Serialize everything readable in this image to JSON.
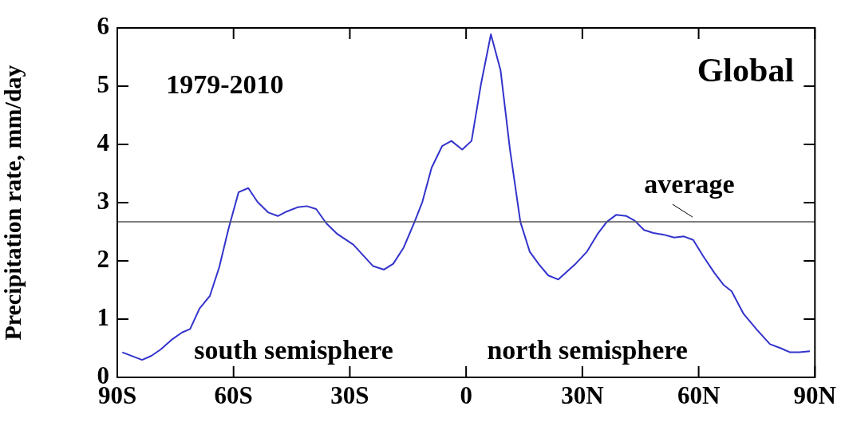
{
  "chart_data": {
    "type": "line",
    "ylabel": "Precipitation rate, mm/day",
    "x": [
      -88.7,
      -83.6,
      -81.2,
      -78.8,
      -75.7,
      -73.3,
      -71.2,
      -68.8,
      -66.1,
      -63.7,
      -61.3,
      -58.7,
      -56.2,
      -53.8,
      -51.0,
      -48.6,
      -46.2,
      -43.5,
      -41.1,
      -38.7,
      -36.0,
      -33.2,
      -29.1,
      -24.0,
      -21.2,
      -18.8,
      -16.1,
      -13.3,
      -11.3,
      -8.9,
      -6.2,
      -3.8,
      -1.0,
      1.4,
      3.8,
      6.4,
      8.9,
      11.3,
      14.0,
      16.4,
      18.8,
      21.2,
      23.8,
      28.4,
      31.2,
      33.9,
      36.3,
      38.7,
      41.4,
      43.5,
      45.9,
      48.3,
      51.0,
      53.7,
      56.2,
      58.6,
      61.0,
      64.0,
      66.4,
      68.5,
      71.6,
      75.0,
      78.4,
      81.2,
      83.6,
      86.0,
      88.7
    ],
    "series": [
      {
        "color": "#3333cc",
        "values": [
          0.43,
          0.3,
          0.37,
          0.48,
          0.66,
          0.77,
          0.83,
          1.18,
          1.4,
          1.89,
          2.55,
          3.18,
          3.25,
          3.01,
          2.83,
          2.77,
          2.85,
          2.92,
          2.94,
          2.89,
          2.64,
          2.46,
          2.28,
          1.91,
          1.85,
          1.95,
          2.23,
          2.67,
          3.01,
          3.6,
          3.97,
          4.06,
          3.91,
          4.06,
          5.02,
          5.89,
          5.27,
          3.92,
          2.67,
          2.16,
          1.94,
          1.75,
          1.68,
          1.96,
          2.16,
          2.46,
          2.67,
          2.79,
          2.77,
          2.69,
          2.53,
          2.48,
          2.45,
          2.4,
          2.42,
          2.36,
          2.1,
          1.8,
          1.59,
          1.48,
          1.09,
          0.82,
          0.57,
          0.5,
          0.43,
          0.43,
          0.45
        ]
      }
    ],
    "xlim": [
      -90,
      90
    ],
    "xticks": [
      {
        "value": -90,
        "label": "90S"
      },
      {
        "value": -60,
        "label": "60S"
      },
      {
        "value": -30,
        "label": "30S"
      },
      0,
      {
        "value": 30,
        "label": "30N"
      },
      {
        "value": 60,
        "label": "60N"
      },
      {
        "value": 90,
        "label": "90N"
      }
    ],
    "ylim": [
      0,
      6
    ],
    "yticks": [
      0,
      1,
      2,
      3,
      4,
      5,
      6
    ],
    "ref_lines": [
      {
        "axis": "y",
        "value": 2.67,
        "label": "average",
        "color": "#555555"
      }
    ],
    "annotations": [
      "1979-2010",
      "Global",
      "south semisphere",
      "north semisphere"
    ],
    "marker": "none",
    "line_style": "solid",
    "legend": false
  }
}
